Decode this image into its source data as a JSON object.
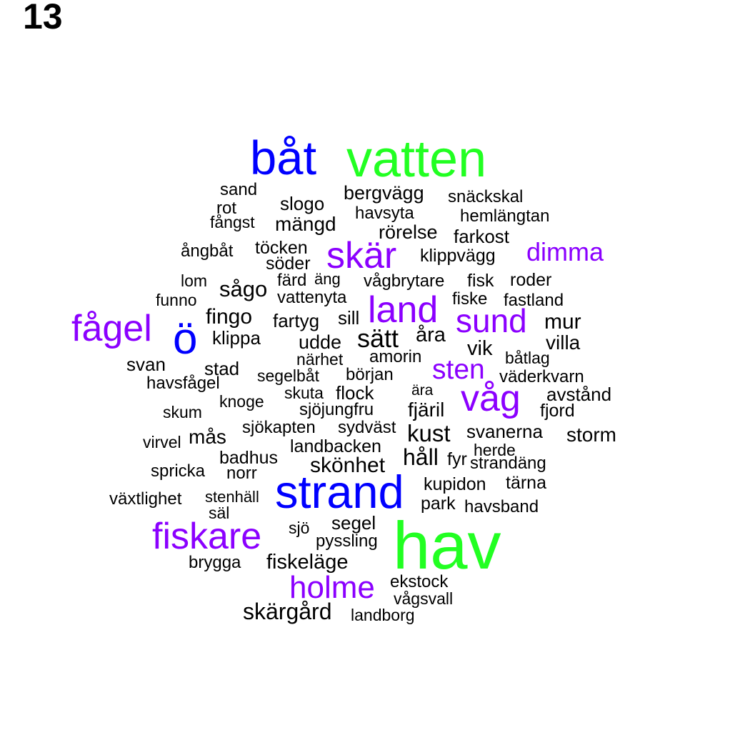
{
  "panel_label": "13",
  "colors": {
    "tier1": "#22ff22",
    "tier2": "#0000ff",
    "tier3": "#8b00ff",
    "tier4": "#000000"
  },
  "words": [
    {
      "text": "hav",
      "tier": "tier1"
    },
    {
      "text": "vatten",
      "tier": "tier1"
    },
    {
      "text": "båt",
      "tier": "tier2"
    },
    {
      "text": "strand",
      "tier": "tier2"
    },
    {
      "text": "ö",
      "tier": "tier2"
    },
    {
      "text": "skär",
      "tier": "tier3"
    },
    {
      "text": "fågel",
      "tier": "tier3"
    },
    {
      "text": "land",
      "tier": "tier3"
    },
    {
      "text": "sund",
      "tier": "tier3"
    },
    {
      "text": "våg",
      "tier": "tier3"
    },
    {
      "text": "fiskare",
      "tier": "tier3"
    },
    {
      "text": "holme",
      "tier": "tier3"
    },
    {
      "text": "dimma",
      "tier": "tier3"
    },
    {
      "text": "sten",
      "tier": "tier3"
    },
    {
      "text": "sand",
      "tier": "tier4"
    },
    {
      "text": "rot",
      "tier": "tier4"
    },
    {
      "text": "fångst",
      "tier": "tier4"
    },
    {
      "text": "slogo",
      "tier": "tier4"
    },
    {
      "text": "mängd",
      "tier": "tier4"
    },
    {
      "text": "bergvägg",
      "tier": "tier4"
    },
    {
      "text": "snäckskal",
      "tier": "tier4"
    },
    {
      "text": "havsyta",
      "tier": "tier4"
    },
    {
      "text": "hemlängtan",
      "tier": "tier4"
    },
    {
      "text": "rörelse",
      "tier": "tier4"
    },
    {
      "text": "farkost",
      "tier": "tier4"
    },
    {
      "text": "ångbåt",
      "tier": "tier4"
    },
    {
      "text": "töcken",
      "tier": "tier4"
    },
    {
      "text": "klippvägg",
      "tier": "tier4"
    },
    {
      "text": "söder",
      "tier": "tier4"
    },
    {
      "text": "lom",
      "tier": "tier4"
    },
    {
      "text": "färd",
      "tier": "tier4"
    },
    {
      "text": "äng",
      "tier": "tier4"
    },
    {
      "text": "vågbrytare",
      "tier": "tier4"
    },
    {
      "text": "fisk",
      "tier": "tier4"
    },
    {
      "text": "roder",
      "tier": "tier4"
    },
    {
      "text": "sågo",
      "tier": "tier4"
    },
    {
      "text": "funno",
      "tier": "tier4"
    },
    {
      "text": "vattenyta",
      "tier": "tier4"
    },
    {
      "text": "fiske",
      "tier": "tier4"
    },
    {
      "text": "fastland",
      "tier": "tier4"
    },
    {
      "text": "fingo",
      "tier": "tier4"
    },
    {
      "text": "fartyg",
      "tier": "tier4"
    },
    {
      "text": "sill",
      "tier": "tier4"
    },
    {
      "text": "mur",
      "tier": "tier4"
    },
    {
      "text": "klippa",
      "tier": "tier4"
    },
    {
      "text": "sätt",
      "tier": "tier4"
    },
    {
      "text": "åra",
      "tier": "tier4"
    },
    {
      "text": "udde",
      "tier": "tier4"
    },
    {
      "text": "villa",
      "tier": "tier4"
    },
    {
      "text": "vik",
      "tier": "tier4"
    },
    {
      "text": "närhet",
      "tier": "tier4"
    },
    {
      "text": "amorin",
      "tier": "tier4"
    },
    {
      "text": "båtlag",
      "tier": "tier4"
    },
    {
      "text": "svan",
      "tier": "tier4"
    },
    {
      "text": "stad",
      "tier": "tier4"
    },
    {
      "text": "segelbåt",
      "tier": "tier4"
    },
    {
      "text": "början",
      "tier": "tier4"
    },
    {
      "text": "väderkvarn",
      "tier": "tier4"
    },
    {
      "text": "havsfågel",
      "tier": "tier4"
    },
    {
      "text": "skuta",
      "tier": "tier4"
    },
    {
      "text": "flock",
      "tier": "tier4"
    },
    {
      "text": "ära",
      "tier": "tier4"
    },
    {
      "text": "avstånd",
      "tier": "tier4"
    },
    {
      "text": "knoge",
      "tier": "tier4"
    },
    {
      "text": "skum",
      "tier": "tier4"
    },
    {
      "text": "sjöjungfru",
      "tier": "tier4"
    },
    {
      "text": "fjäril",
      "tier": "tier4"
    },
    {
      "text": "fjord",
      "tier": "tier4"
    },
    {
      "text": "sjökapten",
      "tier": "tier4"
    },
    {
      "text": "sydväst",
      "tier": "tier4"
    },
    {
      "text": "kust",
      "tier": "tier4"
    },
    {
      "text": "svanerna",
      "tier": "tier4"
    },
    {
      "text": "storm",
      "tier": "tier4"
    },
    {
      "text": "virvel",
      "tier": "tier4"
    },
    {
      "text": "mås",
      "tier": "tier4"
    },
    {
      "text": "landbacken",
      "tier": "tier4"
    },
    {
      "text": "herde",
      "tier": "tier4"
    },
    {
      "text": "badhus",
      "tier": "tier4"
    },
    {
      "text": "håll",
      "tier": "tier4"
    },
    {
      "text": "fyr",
      "tier": "tier4"
    },
    {
      "text": "strandäng",
      "tier": "tier4"
    },
    {
      "text": "spricka",
      "tier": "tier4"
    },
    {
      "text": "norr",
      "tier": "tier4"
    },
    {
      "text": "skönhet",
      "tier": "tier4"
    },
    {
      "text": "kupidon",
      "tier": "tier4"
    },
    {
      "text": "tärna",
      "tier": "tier4"
    },
    {
      "text": "växtlighet",
      "tier": "tier4"
    },
    {
      "text": "stenhäll",
      "tier": "tier4"
    },
    {
      "text": "park",
      "tier": "tier4"
    },
    {
      "text": "havsband",
      "tier": "tier4"
    },
    {
      "text": "säl",
      "tier": "tier4"
    },
    {
      "text": "segel",
      "tier": "tier4"
    },
    {
      "text": "sjö",
      "tier": "tier4"
    },
    {
      "text": "pyssling",
      "tier": "tier4"
    },
    {
      "text": "brygga",
      "tier": "tier4"
    },
    {
      "text": "fiskeläge",
      "tier": "tier4"
    },
    {
      "text": "ekstock",
      "tier": "tier4"
    },
    {
      "text": "vågsvall",
      "tier": "tier4"
    },
    {
      "text": "skärgård",
      "tier": "tier4"
    },
    {
      "text": "landborg",
      "tier": "tier4"
    }
  ]
}
